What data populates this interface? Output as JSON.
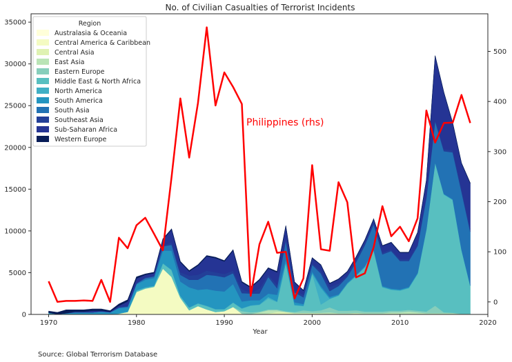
{
  "chart_data": {
    "type": "area",
    "title": "No. of Civilian Casualties of Terrorist Incidents",
    "xlabel": "Year",
    "ylabel": "",
    "xlim": [
      1968,
      2020
    ],
    "ylim": [
      0,
      36000
    ],
    "y2lim": [
      -25,
      575
    ],
    "xticks": [
      1970,
      1980,
      1990,
      2000,
      2010,
      2020
    ],
    "yticks": [
      0,
      5000,
      10000,
      15000,
      20000,
      25000,
      30000,
      35000
    ],
    "y2ticks": [
      0,
      100,
      200,
      300,
      400,
      500
    ],
    "legend_title": "Region",
    "legend_position": "top-left",
    "source": "Source: Global Terrorism Database",
    "annotation": "Philippines (rhs)",
    "x": [
      1970,
      1971,
      1972,
      1973,
      1974,
      1975,
      1976,
      1977,
      1978,
      1979,
      1980,
      1981,
      1982,
      1983,
      1984,
      1985,
      1986,
      1987,
      1988,
      1989,
      1990,
      1991,
      1992,
      1993,
      1994,
      1995,
      1996,
      1997,
      1998,
      1999,
      2000,
      2001,
      2002,
      2003,
      2004,
      2005,
      2006,
      2007,
      2008,
      2009,
      2010,
      2011,
      2012,
      2013,
      2014,
      2015,
      2016,
      2017,
      2018
    ],
    "series": [
      {
        "name": "Australasia & Oceania",
        "color": "#ffffd9",
        "values": [
          0,
          0,
          0,
          0,
          0,
          0,
          0,
          0,
          0,
          0,
          0,
          0,
          0,
          0,
          0,
          0,
          0,
          0,
          0,
          0,
          0,
          0,
          0,
          0,
          0,
          0,
          0,
          0,
          0,
          0,
          0,
          0,
          0,
          0,
          0,
          0,
          0,
          0,
          0,
          0,
          0,
          0,
          0,
          0,
          0,
          0,
          0,
          0,
          0
        ]
      },
      {
        "name": "Central America & Caribbean",
        "color": "#f4fbc2",
        "values": [
          0,
          0,
          0,
          0,
          0,
          0,
          0,
          0,
          100,
          300,
          2700,
          3100,
          3300,
          5500,
          4500,
          2000,
          500,
          1000,
          600,
          300,
          400,
          900,
          100,
          0,
          0,
          0,
          0,
          0,
          0,
          0,
          0,
          0,
          0,
          0,
          0,
          0,
          0,
          0,
          0,
          0,
          0,
          0,
          0,
          0,
          0,
          0,
          0,
          0,
          0
        ]
      },
      {
        "name": "Central Asia",
        "color": "#dff2b2",
        "values": [
          0,
          0,
          0,
          0,
          0,
          0,
          0,
          0,
          0,
          0,
          0,
          0,
          0,
          0,
          0,
          0,
          0,
          0,
          0,
          0,
          0,
          0,
          0,
          50,
          50,
          100,
          300,
          300,
          100,
          100,
          100,
          100,
          50,
          50,
          50,
          100,
          50,
          50,
          50,
          50,
          50,
          50,
          50,
          50,
          50,
          50,
          50,
          50,
          50
        ]
      },
      {
        "name": "East Asia",
        "color": "#bae4b6",
        "values": [
          0,
          0,
          0,
          0,
          0,
          0,
          0,
          0,
          0,
          0,
          0,
          0,
          0,
          0,
          0,
          0,
          0,
          0,
          0,
          0,
          0,
          0,
          0,
          0,
          200,
          400,
          200,
          0,
          100,
          100,
          100,
          100,
          200,
          100,
          100,
          100,
          100,
          100,
          100,
          200,
          200,
          300,
          200,
          100,
          100,
          100,
          100,
          0,
          0
        ]
      },
      {
        "name": "Eastern Europe",
        "color": "#87cebb",
        "values": [
          0,
          0,
          0,
          0,
          0,
          0,
          0,
          0,
          0,
          0,
          0,
          0,
          0,
          0,
          0,
          0,
          0,
          0,
          0,
          0,
          0,
          0,
          300,
          200,
          100,
          100,
          100,
          100,
          100,
          300,
          200,
          300,
          600,
          300,
          300,
          300,
          200,
          200,
          200,
          200,
          200,
          200,
          200,
          200,
          900,
          100,
          50,
          50,
          50
        ]
      },
      {
        "name": "Middle East & North Africa",
        "color": "#58bfc0",
        "values": [
          0,
          0,
          0,
          0,
          0,
          0,
          0,
          0,
          0,
          0,
          100,
          100,
          100,
          600,
          800,
          200,
          300,
          300,
          400,
          300,
          200,
          500,
          300,
          800,
          800,
          1300,
          900,
          5800,
          800,
          500,
          4500,
          700,
          1000,
          1800,
          3200,
          4100,
          5300,
          7300,
          2900,
          2500,
          2400,
          2600,
          4400,
          9800,
          17100,
          14100,
          13500,
          7600,
          3300
        ]
      },
      {
        "name": "North America",
        "color": "#40afc5",
        "values": [
          200,
          50,
          50,
          50,
          50,
          50,
          50,
          50,
          50,
          50,
          100,
          50,
          50,
          50,
          50,
          50,
          50,
          50,
          50,
          50,
          50,
          50,
          50,
          50,
          50,
          200,
          50,
          50,
          50,
          50,
          50,
          2000,
          50,
          50,
          50,
          50,
          50,
          50,
          50,
          50,
          50,
          50,
          50,
          50,
          50,
          50,
          50,
          50,
          50
        ]
      },
      {
        "name": "South America",
        "color": "#2495c0",
        "values": [
          0,
          0,
          100,
          200,
          200,
          200,
          300,
          200,
          600,
          500,
          700,
          900,
          900,
          1500,
          2300,
          1700,
          2400,
          1600,
          2000,
          2200,
          2100,
          2200,
          800,
          600,
          500,
          400,
          800,
          400,
          300,
          200,
          200,
          200,
          200,
          100,
          100,
          100,
          100,
          100,
          100,
          100,
          100,
          100,
          100,
          50,
          50,
          50,
          50,
          50,
          50
        ]
      },
      {
        "name": "South Asia",
        "color": "#2272b4",
        "values": [
          0,
          0,
          0,
          0,
          0,
          0,
          0,
          0,
          100,
          100,
          100,
          200,
          200,
          500,
          700,
          800,
          900,
          1200,
          1700,
          1800,
          1700,
          1300,
          1000,
          800,
          800,
          2000,
          800,
          2200,
          1200,
          800,
          800,
          1500,
          700,
          1000,
          700,
          1500,
          2500,
          3000,
          3800,
          4500,
          3400,
          3100,
          3200,
          3700,
          4900,
          5100,
          5600,
          6900,
          6400
        ]
      },
      {
        "name": "Southeast Asia",
        "color": "#233f98",
        "values": [
          0,
          0,
          0,
          0,
          0,
          0,
          0,
          0,
          0,
          100,
          100,
          100,
          100,
          100,
          300,
          300,
          500,
          600,
          500,
          400,
          400,
          300,
          500,
          100,
          600,
          300,
          400,
          300,
          300,
          300,
          200,
          300,
          500,
          300,
          200,
          300,
          300,
          200,
          200,
          200,
          200,
          200,
          200,
          200,
          200,
          200,
          300,
          300,
          300
        ]
      },
      {
        "name": "Sub-Saharan Africa",
        "color": "#253494",
        "values": [
          0,
          0,
          0,
          100,
          100,
          200,
          100,
          100,
          200,
          500,
          500,
          300,
          300,
          700,
          1500,
          1200,
          500,
          1100,
          1700,
          1700,
          1500,
          2400,
          800,
          600,
          1000,
          700,
          1500,
          1400,
          900,
          500,
          600,
          700,
          400,
          500,
          400,
          300,
          300,
          400,
          800,
          800,
          800,
          800,
          1400,
          1900,
          7600,
          6800,
          3200,
          3100,
          5500
        ]
      },
      {
        "name": "Western Europe",
        "color": "#081d58",
        "values": [
          200,
          200,
          400,
          200,
          200,
          200,
          200,
          100,
          200,
          200,
          200,
          100,
          100,
          100,
          100,
          100,
          100,
          100,
          100,
          100,
          100,
          100,
          100,
          100,
          100,
          100,
          100,
          100,
          50,
          50,
          50,
          50,
          50,
          50,
          50,
          50,
          50,
          50,
          50,
          50,
          50,
          50,
          50,
          50,
          50,
          50,
          50,
          50,
          50
        ]
      }
    ],
    "secondary_series": {
      "name": "Philippines (rhs)",
      "color": "#ff0000",
      "axis": "right",
      "values": [
        41,
        0,
        2,
        2,
        3,
        2,
        44,
        0,
        128,
        107,
        153,
        168,
        136,
        103,
        250,
        406,
        288,
        397,
        548,
        392,
        458,
        429,
        395,
        12,
        115,
        160,
        98,
        100,
        7,
        47,
        273,
        105,
        102,
        239,
        199,
        49,
        57,
        109,
        191,
        131,
        150,
        121,
        167,
        382,
        318,
        357,
        358,
        413,
        357
      ]
    }
  }
}
